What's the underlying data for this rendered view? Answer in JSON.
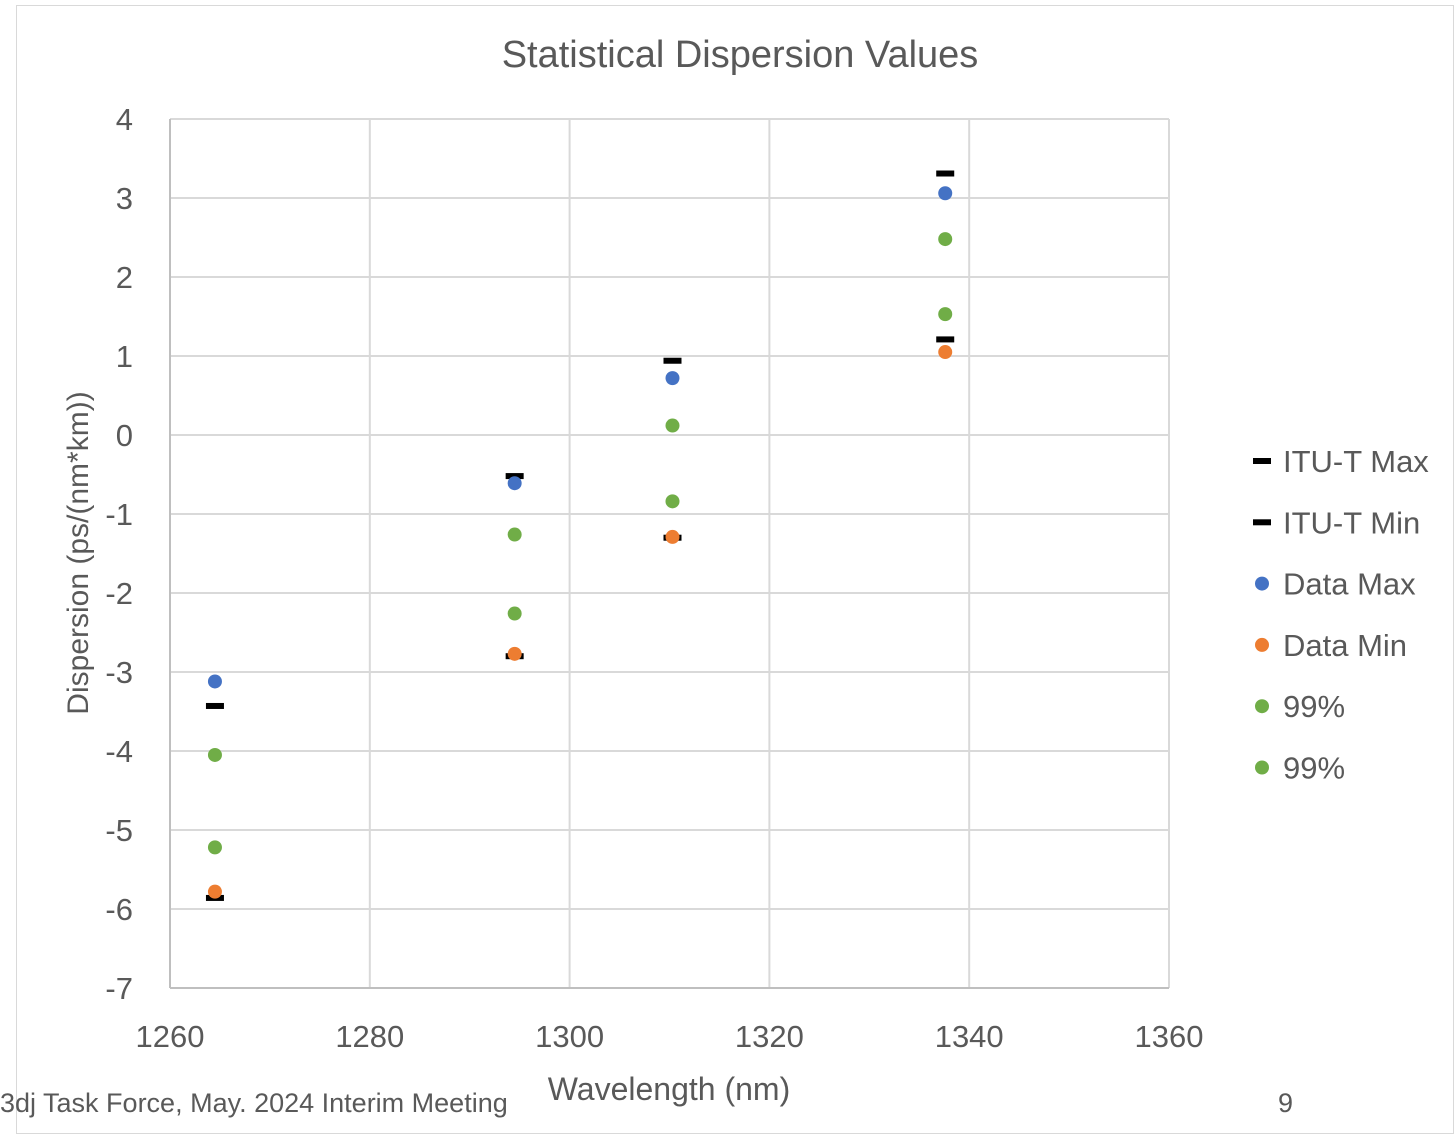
{
  "chart_data": {
    "type": "scatter",
    "title": "Statistical Dispersion Values",
    "xlabel": "Wavelength (nm)",
    "ylabel": "Dispersion (ps/(nm*km))",
    "xlim": [
      1260,
      1360
    ],
    "ylim": [
      -7,
      4
    ],
    "x_ticks": [
      1260,
      1280,
      1300,
      1320,
      1340,
      1360
    ],
    "y_ticks": [
      4,
      3,
      2,
      1,
      0,
      -1,
      -2,
      -3,
      -4,
      -5,
      -6,
      -7
    ],
    "grid": true,
    "legend_position": "right",
    "series": [
      {
        "name": "ITU-T Max",
        "marker": "dash",
        "color": "#000000",
        "points": [
          [
            1264.5,
            -3.43
          ],
          [
            1294.5,
            -0.52
          ],
          [
            1310.3,
            0.94
          ],
          [
            1337.6,
            3.31
          ]
        ]
      },
      {
        "name": "ITU-T Min",
        "marker": "dash",
        "color": "#000000",
        "points": [
          [
            1264.5,
            -5.86
          ],
          [
            1294.5,
            -2.8
          ],
          [
            1310.3,
            -1.3
          ],
          [
            1337.6,
            1.21
          ]
        ]
      },
      {
        "name": "Data Max",
        "marker": "circle",
        "color": "#4472c4",
        "points": [
          [
            1264.5,
            -3.12
          ],
          [
            1294.5,
            -0.61
          ],
          [
            1310.3,
            0.72
          ],
          [
            1337.6,
            3.06
          ]
        ]
      },
      {
        "name": "Data Min",
        "marker": "circle",
        "color": "#ed7d31",
        "points": [
          [
            1264.5,
            -5.78
          ],
          [
            1294.5,
            -2.77
          ],
          [
            1310.3,
            -1.29
          ],
          [
            1337.6,
            1.05
          ]
        ]
      },
      {
        "name": "99%",
        "marker": "circle",
        "color": "#70ad47",
        "points": [
          [
            1264.5,
            -4.05
          ],
          [
            1294.5,
            -1.26
          ],
          [
            1310.3,
            0.12
          ],
          [
            1337.6,
            2.48
          ]
        ]
      },
      {
        "name": "99%",
        "marker": "circle",
        "color": "#70ad47",
        "points": [
          [
            1264.5,
            -5.22
          ],
          [
            1294.5,
            -2.26
          ],
          [
            1310.3,
            -0.84
          ],
          [
            1337.6,
            1.53
          ]
        ]
      }
    ]
  },
  "footer": {
    "left_text": "3dj Task Force, May. 2024 Interim Meeting",
    "page_number": "9"
  }
}
